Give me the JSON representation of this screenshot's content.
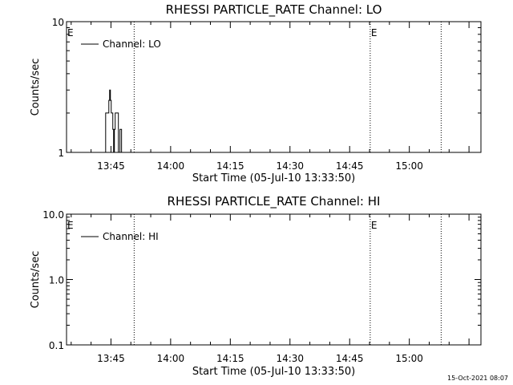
{
  "footer_timestamp": "15-Oct-2021 08:07",
  "chart_data": [
    {
      "type": "line",
      "title": "RHESSI PARTICLE_RATE Channel: LO",
      "xlabel": "Start Time (05-Jul-10 13:33:50)",
      "ylabel": "Counts/sec",
      "yscale": "log",
      "xlim": [
        "13:33:50",
        "15:18:00"
      ],
      "ylim": [
        1,
        10
      ],
      "x_ticks": [
        "13:45",
        "14:00",
        "14:15",
        "14:30",
        "14:45",
        "15:00"
      ],
      "y_ticks": [
        "1",
        "10"
      ],
      "legend": {
        "position": "top-left"
      },
      "series": [
        {
          "name": "Channel: LO",
          "x": [
            "13:43:40",
            "13:43:40",
            "13:43:52",
            "13:44:04",
            "13:44:16",
            "13:44:28",
            "13:44:40",
            "13:44:52",
            "13:45:04",
            "13:45:16",
            "13:45:28",
            "13:45:40",
            "13:45:52",
            "13:46:04",
            "13:46:16",
            "13:46:28",
            "13:46:40",
            "13:46:52",
            "13:47:04",
            "13:47:16",
            "13:47:28",
            "13:47:40",
            "13:47:52",
            "13:48:04",
            "13:48:16",
            "13:48:28",
            "13:48:40",
            "13:48:52",
            "13:49:04"
          ],
          "values": [
            1,
            2,
            2,
            2,
            2,
            2.5,
            3,
            2.5,
            2,
            2,
            1.5,
            1,
            1.5,
            2,
            2,
            2,
            2,
            1,
            1,
            1.5,
            1.5,
            1,
            1,
            1,
            1,
            1,
            1,
            1,
            1
          ]
        }
      ],
      "vlines": [
        "13:50:50",
        "14:50:10",
        "15:08:00"
      ],
      "markers": [
        {
          "label": "E",
          "x": "13:33:50"
        },
        {
          "label": "E",
          "x": "14:50:10"
        }
      ]
    },
    {
      "type": "line",
      "title": "RHESSI PARTICLE_RATE Channel: HI",
      "xlabel": "Start Time (05-Jul-10 13:33:50)",
      "ylabel": "Counts/sec",
      "yscale": "log",
      "xlim": [
        "13:33:50",
        "15:18:00"
      ],
      "ylim": [
        0.1,
        10
      ],
      "x_ticks": [
        "13:45",
        "14:00",
        "14:15",
        "14:30",
        "14:45",
        "15:00"
      ],
      "y_ticks": [
        "0.1",
        "1.0",
        "10.0"
      ],
      "legend": {
        "position": "top-left"
      },
      "series": [
        {
          "name": "Channel: HI",
          "x": [],
          "values": []
        }
      ],
      "vlines": [
        "13:50:50",
        "14:50:10",
        "15:08:00"
      ],
      "markers": [
        {
          "label": "E",
          "x": "13:33:50"
        },
        {
          "label": "E",
          "x": "14:50:10"
        }
      ]
    }
  ]
}
